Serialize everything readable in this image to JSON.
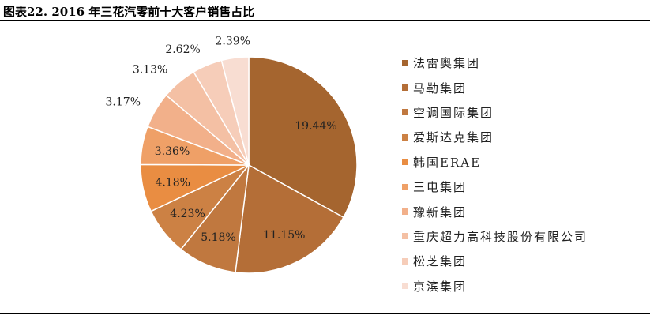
{
  "title": "图表22.  2016 年三花汽零前十大客户销售占比",
  "chart_data": {
    "type": "pie",
    "title": "图表22.  2016 年三花汽零前十大客户销售占比",
    "legend_position": "right",
    "start_angle": "top, clockwise",
    "categories": [
      "法雷奥集团",
      "马勒集团",
      "空调国际集团",
      "爱斯达克集团",
      "韩国ERAE",
      "三电集团",
      "豫新集团",
      "重庆超力高科技股份有限公司",
      "松芝集团",
      "京滨集团"
    ],
    "values": [
      19.44,
      11.15,
      5.18,
      4.23,
      4.18,
      3.36,
      3.17,
      3.13,
      2.62,
      2.39
    ],
    "labels": [
      "19.44%",
      "11.15%",
      "5.18%",
      "4.23%",
      "4.18%",
      "3.36%",
      "3.17%",
      "3.13%",
      "2.62%",
      "2.39%"
    ],
    "colors": [
      "#A5652F",
      "#B46E37",
      "#C0783F",
      "#CC8144",
      "#E98D42",
      "#EFA067",
      "#F2B08A",
      "#F4C0A4",
      "#F6CDB9",
      "#F8DDD2"
    ]
  }
}
